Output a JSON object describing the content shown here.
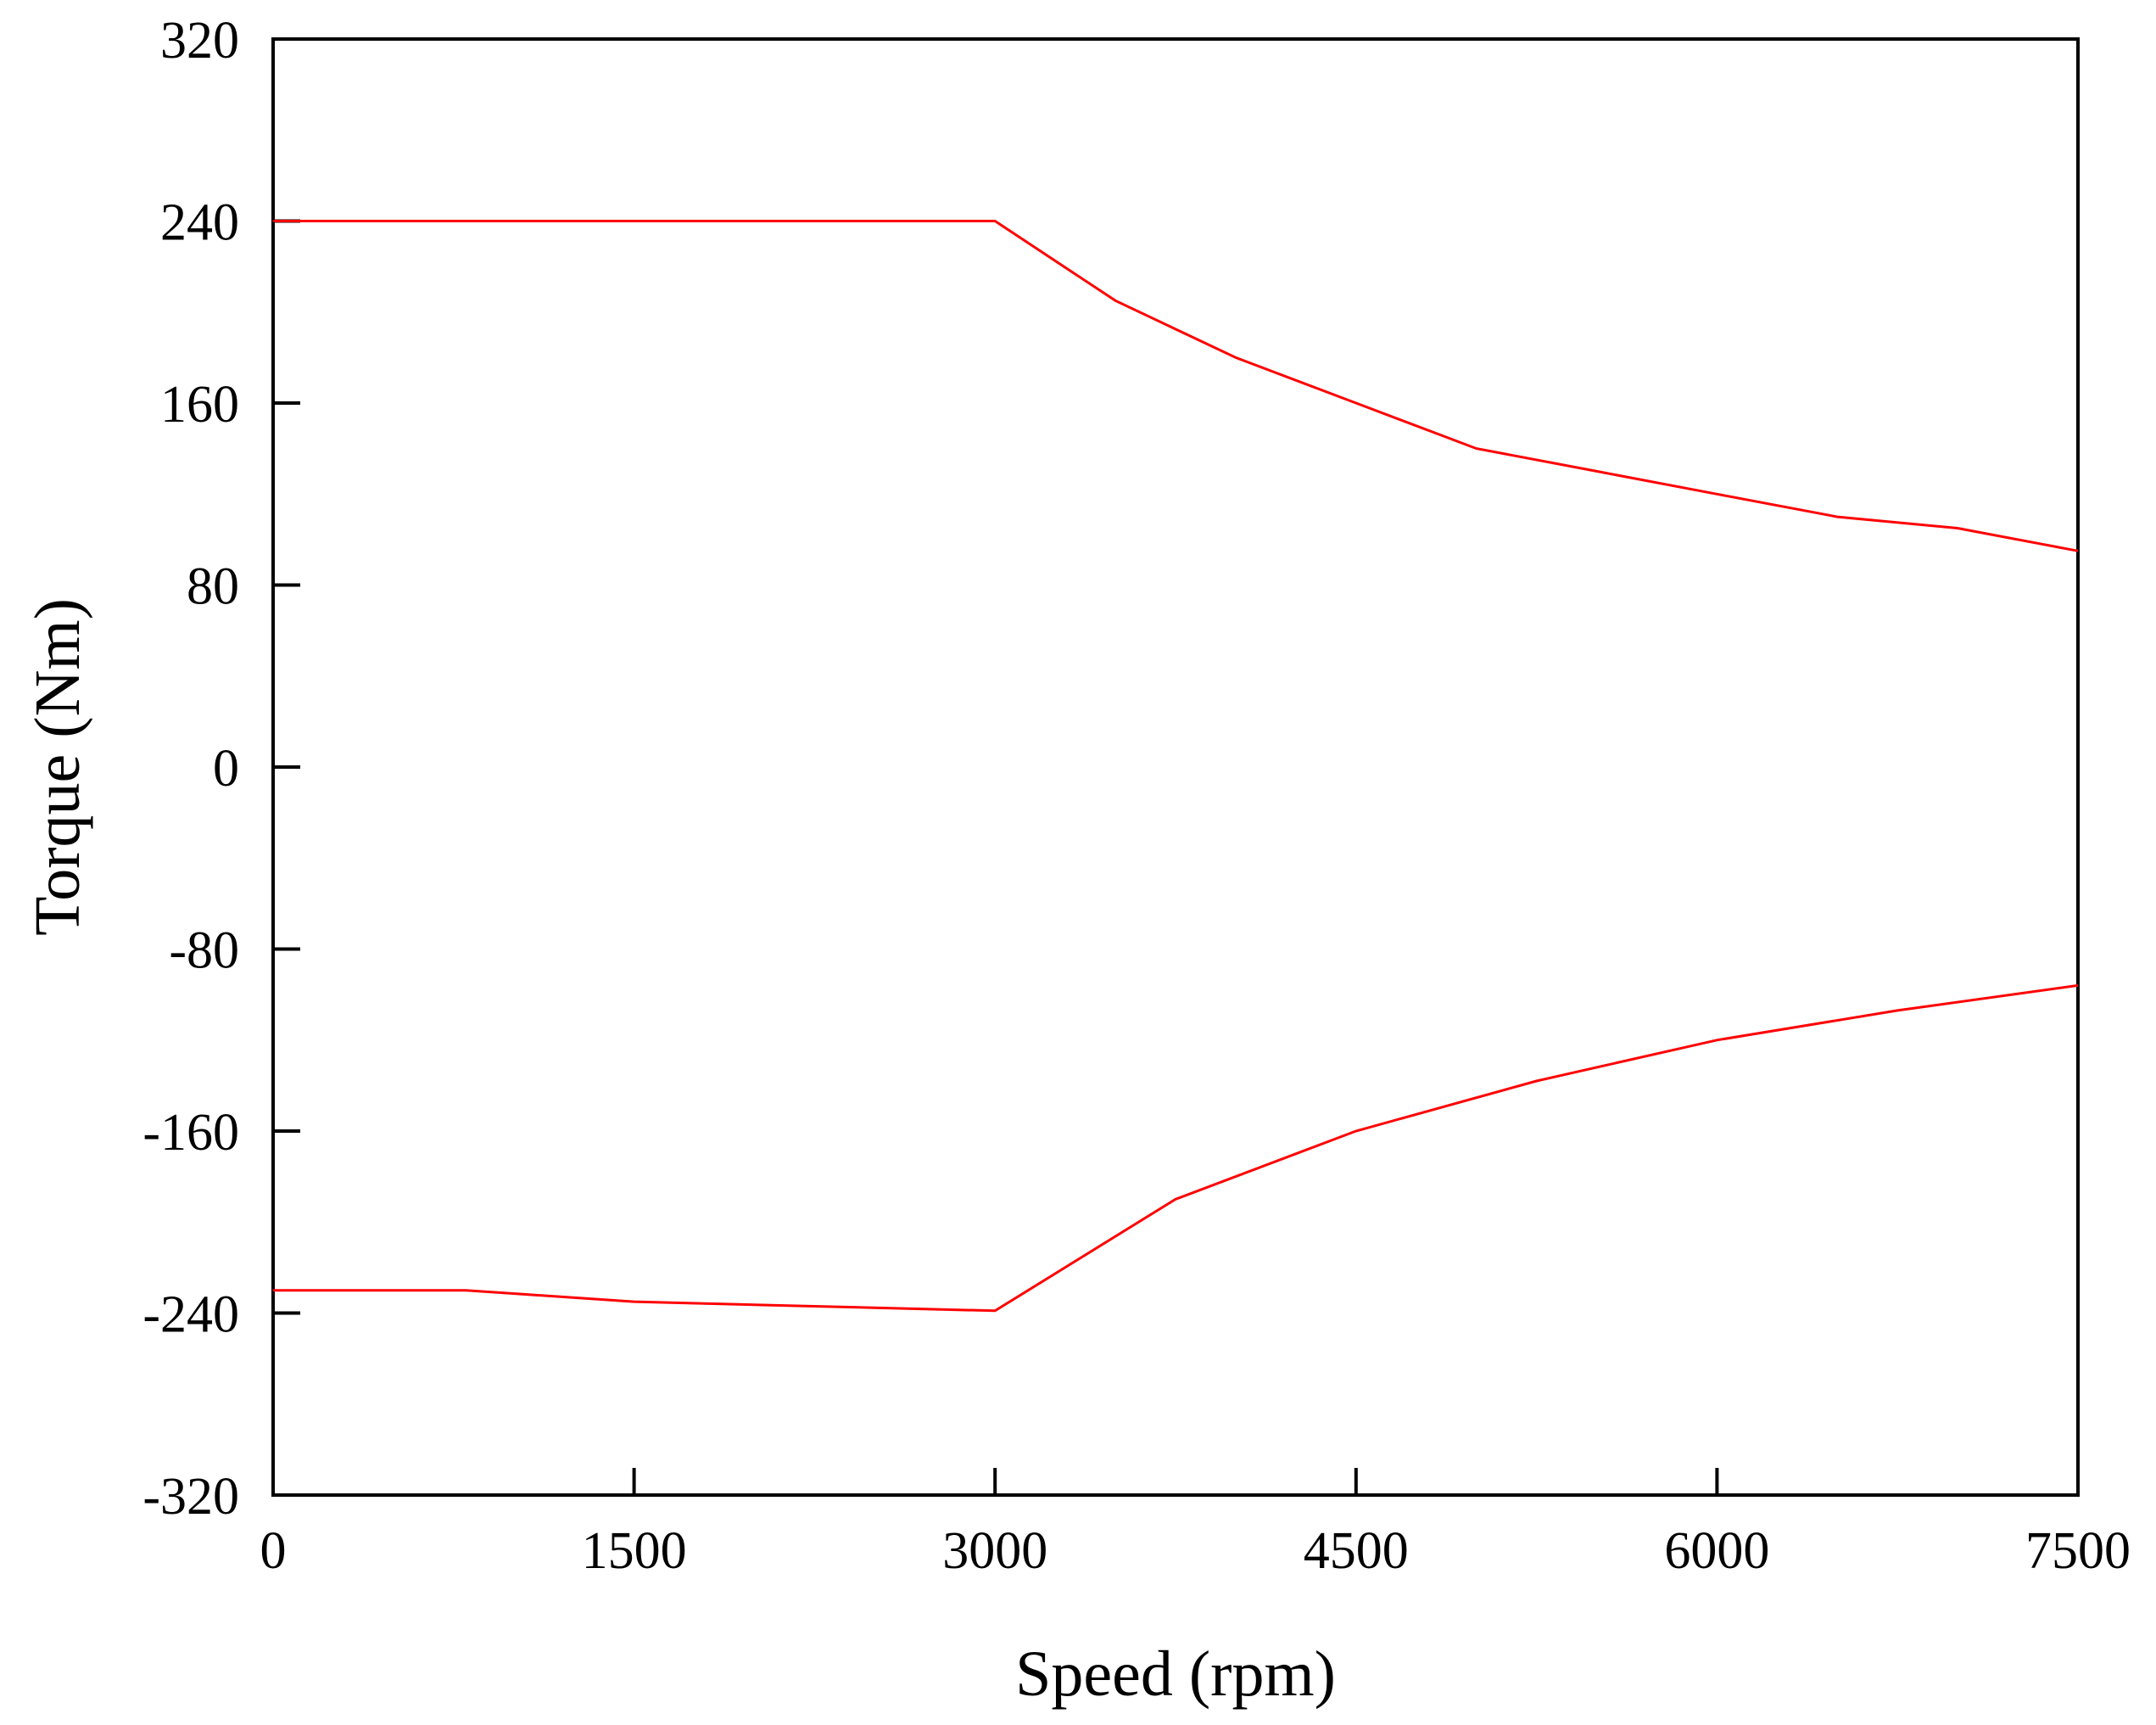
{
  "chart_data": {
    "type": "line",
    "title": "",
    "xlabel": "Speed (rpm)",
    "ylabel": "Torque (Nm)",
    "xlim": [
      0,
      7500
    ],
    "ylim": [
      -320,
      320
    ],
    "xticks": [
      0,
      1500,
      3000,
      4500,
      6000,
      7500
    ],
    "yticks": [
      320,
      240,
      160,
      80,
      0,
      -80,
      -160,
      -240,
      -320
    ],
    "grid": false,
    "legend": "none",
    "line_color": "#ff0000",
    "series": [
      {
        "x": [
          0,
          3000,
          3500,
          4000,
          4500,
          5000,
          5500,
          6000,
          6500,
          7000,
          7500
        ],
        "y": [
          240,
          240,
          205,
          180,
          160,
          140,
          130,
          120,
          110,
          105,
          95
        ]
      },
      {
        "x": [
          0,
          800,
          1500,
          2250,
          3000,
          3750,
          4500,
          5250,
          6000,
          6750,
          7500
        ],
        "y": [
          -230,
          -230,
          -235,
          -237,
          -239,
          -190,
          -160,
          -138,
          -120,
          -107,
          -96
        ]
      }
    ]
  }
}
